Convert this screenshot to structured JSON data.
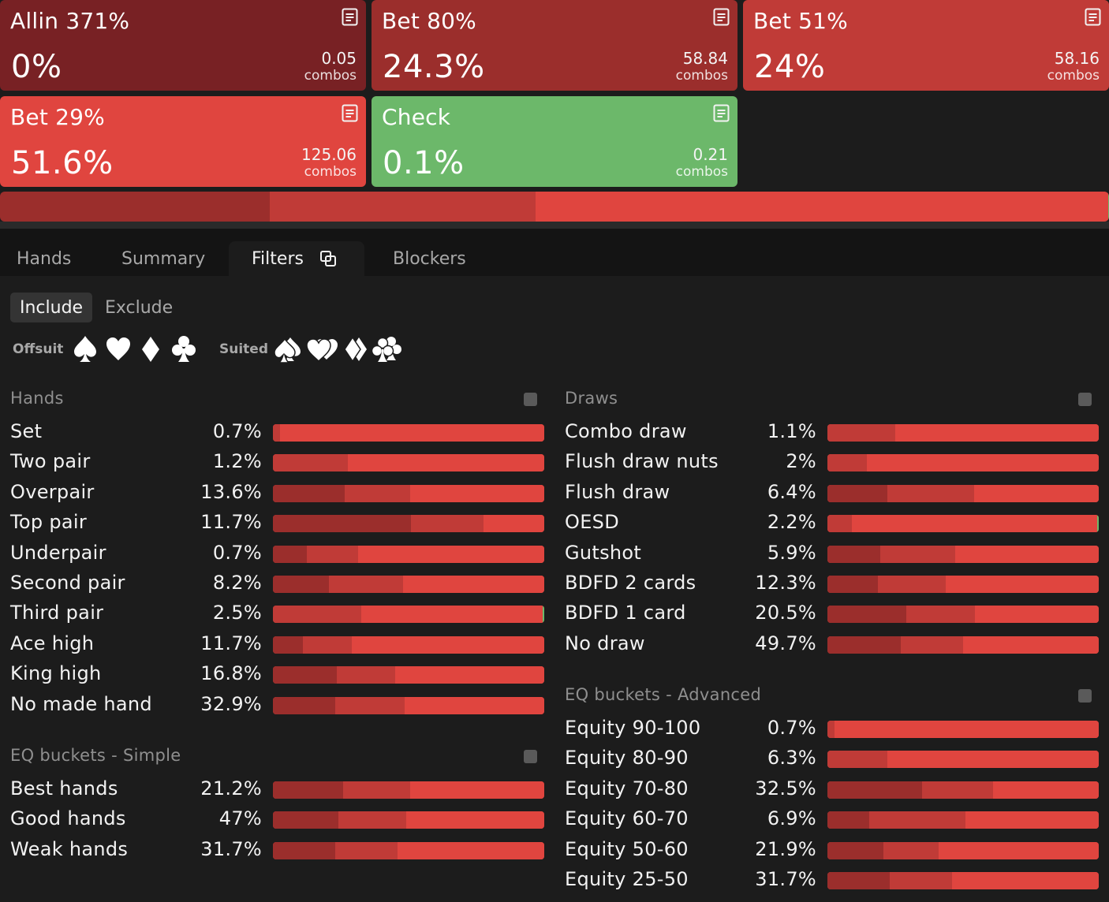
{
  "colors": {
    "allin": "#782124",
    "bet80": "#9b2e2c",
    "bet51": "#c03b37",
    "bet29": "#e0453f",
    "check": "#6cb86a",
    "background": "#1c1c1c",
    "tabbar": "#141414"
  },
  "actions": [
    {
      "key": "allin",
      "title": "Allin 371%",
      "pct": "0%",
      "combos": "0.05",
      "combos_label": "combos",
      "icon": "notes-icon"
    },
    {
      "key": "bet80",
      "title": "Bet 80%",
      "pct": "24.3%",
      "combos": "58.84",
      "combos_label": "combos",
      "icon": "notes-icon"
    },
    {
      "key": "bet51",
      "title": "Bet 51%",
      "pct": "24%",
      "combos": "58.16",
      "combos_label": "combos",
      "icon": "notes-icon"
    },
    {
      "key": "bet29",
      "title": "Bet 29%",
      "pct": "51.6%",
      "combos": "125.06",
      "combos_label": "combos",
      "icon": "notes-icon"
    },
    {
      "key": "check",
      "title": "Check",
      "pct": "0.1%",
      "combos": "0.21",
      "combos_label": "combos",
      "icon": "notes-icon"
    }
  ],
  "strategy_strip": [
    {
      "action": "allin",
      "share": 0
    },
    {
      "action": "bet80",
      "share": 24.3
    },
    {
      "action": "bet51",
      "share": 24
    },
    {
      "action": "bet29",
      "share": 51.6
    },
    {
      "action": "check",
      "share": 0.1
    }
  ],
  "tabs": [
    {
      "label": "Hands",
      "active": false
    },
    {
      "label": "Summary",
      "active": false
    },
    {
      "label": "Filters",
      "active": true,
      "icon": "popout-icon"
    },
    {
      "label": "Blockers",
      "active": false
    }
  ],
  "mode": {
    "include": "Include",
    "exclude": "Exclude",
    "selected": "include"
  },
  "suits": {
    "offsuit_label": "Offsuit",
    "suited_label": "Suited",
    "offsuit_icons": [
      "spade-icon",
      "heart-icon",
      "diamond-icon",
      "club-icon"
    ],
    "suited_icons": [
      "double-spade-icon",
      "double-heart-icon",
      "double-diamond-icon",
      "double-club-icon"
    ]
  },
  "sections": {
    "hands": {
      "title": "Hands",
      "rows": [
        {
          "label": "Set",
          "pct": "0.7%",
          "mix": [
            0,
            0,
            2.5,
            97.5
          ]
        },
        {
          "label": "Two pair",
          "pct": "1.2%",
          "mix": [
            0,
            0,
            27.5,
            72.5
          ]
        },
        {
          "label": "Overpair",
          "pct": "13.6%",
          "mix": [
            0,
            26.5,
            24,
            49.5
          ]
        },
        {
          "label": "Top pair",
          "pct": "11.7%",
          "mix": [
            0,
            51,
            26.5,
            22.5
          ]
        },
        {
          "label": "Underpair",
          "pct": "0.7%",
          "mix": [
            0,
            12.5,
            19,
            68.5
          ]
        },
        {
          "label": "Second pair",
          "pct": "8.2%",
          "mix": [
            0,
            20.5,
            27.5,
            52
          ]
        },
        {
          "label": "Third pair",
          "pct": "2.5%",
          "mix": [
            0,
            0,
            32.5,
            67,
            0.5
          ]
        },
        {
          "label": "Ace high",
          "pct": "11.7%",
          "mix": [
            0,
            11,
            18,
            71
          ]
        },
        {
          "label": "King high",
          "pct": "16.8%",
          "mix": [
            0,
            23.5,
            21.5,
            55
          ]
        },
        {
          "label": "No made hand",
          "pct": "32.9%",
          "mix": [
            0,
            23,
            25.5,
            51.5
          ]
        }
      ]
    },
    "eq_simple": {
      "title": "EQ buckets - Simple",
      "rows": [
        {
          "label": "Best hands",
          "pct": "21.2%",
          "mix": [
            0,
            26,
            24.5,
            49.5
          ]
        },
        {
          "label": "Good hands",
          "pct": "47%",
          "mix": [
            0,
            24,
            25,
            51
          ]
        },
        {
          "label": "Weak hands",
          "pct": "31.7%",
          "mix": [
            0,
            23,
            23,
            54
          ]
        }
      ]
    },
    "draws": {
      "title": "Draws",
      "rows": [
        {
          "label": "Combo draw",
          "pct": "1.1%",
          "mix": [
            0,
            0,
            25,
            75
          ]
        },
        {
          "label": "Flush draw nuts",
          "pct": "2%",
          "mix": [
            0,
            0,
            14.5,
            85.5
          ]
        },
        {
          "label": "Flush draw",
          "pct": "6.4%",
          "mix": [
            0,
            22,
            32,
            46
          ]
        },
        {
          "label": "OESD",
          "pct": "2.2%",
          "mix": [
            0,
            0,
            9,
            90.5,
            0.5
          ]
        },
        {
          "label": "Gutshot",
          "pct": "5.9%",
          "mix": [
            0,
            19.5,
            27.5,
            53
          ]
        },
        {
          "label": "BDFD 2 cards",
          "pct": "12.3%",
          "mix": [
            0,
            18.5,
            25,
            56.5
          ]
        },
        {
          "label": "BDFD 1 card",
          "pct": "20.5%",
          "mix": [
            0,
            29,
            25.5,
            45.5
          ]
        },
        {
          "label": "No draw",
          "pct": "49.7%",
          "mix": [
            0,
            27,
            23,
            50
          ]
        }
      ]
    },
    "eq_advanced": {
      "title": "EQ buckets - Advanced",
      "rows": [
        {
          "label": "Equity 90-100",
          "pct": "0.7%",
          "mix": [
            0,
            0,
            2.5,
            97.5
          ]
        },
        {
          "label": "Equity 80-90",
          "pct": "6.3%",
          "mix": [
            0,
            0,
            22,
            78
          ]
        },
        {
          "label": "Equity 70-80",
          "pct": "32.5%",
          "mix": [
            0,
            35,
            26,
            39
          ]
        },
        {
          "label": "Equity 60-70",
          "pct": "6.9%",
          "mix": [
            0,
            15.5,
            35.5,
            49
          ]
        },
        {
          "label": "Equity 50-60",
          "pct": "21.9%",
          "mix": [
            0,
            20.5,
            20.5,
            59
          ]
        },
        {
          "label": "Equity 25-50",
          "pct": "31.7%",
          "mix": [
            0,
            23,
            23,
            54
          ]
        }
      ]
    }
  }
}
